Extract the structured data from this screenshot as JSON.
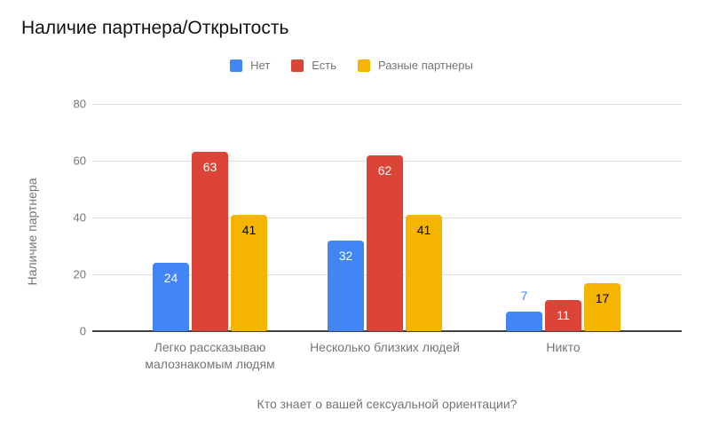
{
  "chart_data": {
    "type": "bar",
    "title": "Наличие партнера/Открытость",
    "xlabel": "Кто знает о вашей сексуальной ориентации?",
    "ylabel": "Наличие партнера",
    "categories": [
      "Легко рассказываю малознакомым людям",
      "Несколько близких людей",
      "Никто"
    ],
    "series": [
      {
        "name": "Нет",
        "color": "#4285F4",
        "value_label_color": "#ffffff",
        "values": [
          24,
          32,
          7
        ]
      },
      {
        "name": "Есть",
        "color": "#DB4437",
        "value_label_color": "#ffffff",
        "values": [
          63,
          62,
          11
        ]
      },
      {
        "name": "Разные партнеры",
        "color": "#F4B400",
        "value_label_color": "#000000",
        "values": [
          41,
          41,
          17
        ]
      }
    ],
    "ylim": [
      0,
      80
    ],
    "yticks": [
      0,
      20,
      40,
      60,
      80
    ],
    "grid": true,
    "legend_position": "top",
    "gridline_color": "#dadce0",
    "baseline_color": "#424242",
    "axis_text_color": "#757575"
  }
}
